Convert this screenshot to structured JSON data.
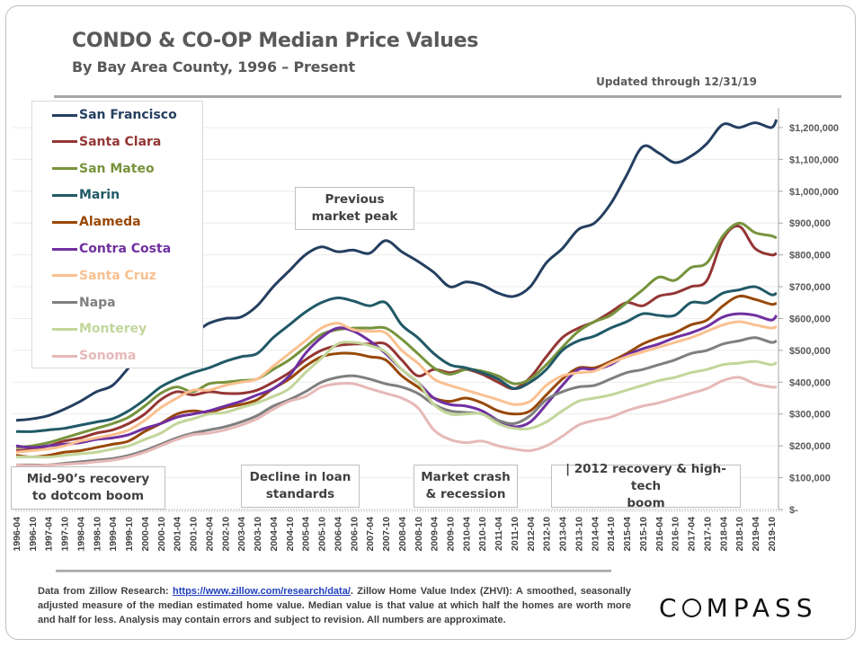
{
  "header": {
    "title": "CONDO & CO-OP Median Price Values",
    "subtitle": "By Bay Area County,  1996 – Present",
    "updated": "Updated through 12/31/19"
  },
  "annotations": {
    "previous_peak": [
      "Previous",
      "market peak"
    ],
    "mid90s": [
      "Mid-90’s recovery",
      "to dotcom boom"
    ],
    "loan": [
      "Decline in loan",
      "standards"
    ],
    "crash": [
      "Market crash",
      "& recession"
    ],
    "recovery": [
      "| 2012 recovery & high-tech",
      "boom"
    ]
  },
  "footer": {
    "prefix": "Data from Zillow Research: ",
    "link": "https://www.zillow.com/research/data/",
    "text": ". Zillow Home Value Index (ZHVI): A smoothed, seasonally adjusted measure of the median estimated home value. Median value is that value at which half the homes are worth more and half for less. Analysis may contain errors and subject to revision. All numbers are approximate."
  },
  "logo": {
    "text": "COMPASS"
  },
  "chart_data": {
    "type": "line",
    "title": "CONDO & CO-OP Median Price Values",
    "xlabel": "",
    "ylabel": "",
    "ylim": [
      0,
      1250000
    ],
    "grid": true,
    "legend_placement": "top-left",
    "y_ticks": [
      "$-",
      "$100,000",
      "$200,000",
      "$300,000",
      "$400,000",
      "$500,000",
      "$600,000",
      "$700,000",
      "$800,000",
      "$900,000",
      "$1,000,000",
      "$1,100,000",
      "$1,200,000"
    ],
    "y_tick_values": [
      0,
      100000,
      200000,
      300000,
      400000,
      500000,
      600000,
      700000,
      800000,
      900000,
      1000000,
      1100000,
      1200000
    ],
    "x_ticks": [
      "1996-04",
      "1996-10",
      "1997-04",
      "1997-10",
      "1998-04",
      "1998-10",
      "1999-04",
      "1999-10",
      "2000-04",
      "2000-10",
      "2001-04",
      "2001-10",
      "2002-04",
      "2002-10",
      "2003-04",
      "2003-10",
      "2004-04",
      "2004-10",
      "2005-04",
      "2005-10",
      "2006-04",
      "2006-10",
      "2007-04",
      "2007-10",
      "2008-04",
      "2008-10",
      "2009-04",
      "2009-10",
      "2010-04",
      "2010-10",
      "2011-04",
      "2011-10",
      "2012-04",
      "2012-10",
      "2013-04",
      "2013-10",
      "2014-04",
      "2014-10",
      "2015-04",
      "2015-10",
      "2016-04",
      "2016-10",
      "2017-04",
      "2017-10",
      "2018-04",
      "2018-10",
      "2019-04",
      "2019-10"
    ],
    "x": [
      "1996-04",
      "1996-10",
      "1997-04",
      "1997-10",
      "1998-04",
      "1998-10",
      "1999-04",
      "1999-10",
      "2000-04",
      "2000-10",
      "2001-04",
      "2001-10",
      "2002-04",
      "2002-10",
      "2003-04",
      "2003-10",
      "2004-04",
      "2004-10",
      "2005-04",
      "2005-10",
      "2006-04",
      "2006-10",
      "2007-04",
      "2007-10",
      "2008-04",
      "2008-10",
      "2009-04",
      "2009-10",
      "2010-04",
      "2010-10",
      "2011-04",
      "2011-10",
      "2012-04",
      "2012-10",
      "2013-04",
      "2013-10",
      "2014-04",
      "2014-10",
      "2015-04",
      "2015-10",
      "2016-04",
      "2016-10",
      "2017-04",
      "2017-10",
      "2018-04",
      "2018-10",
      "2019-04",
      "2019-10",
      "2019-12"
    ],
    "series": [
      {
        "name": "San Francisco",
        "color": "#243f60",
        "values": [
          280000,
          285000,
          295000,
          315000,
          340000,
          370000,
          390000,
          445000,
          500000,
          545000,
          560000,
          555000,
          585000,
          600000,
          605000,
          640000,
          700000,
          750000,
          800000,
          825000,
          810000,
          815000,
          805000,
          845000,
          810000,
          780000,
          745000,
          700000,
          715000,
          705000,
          680000,
          670000,
          700000,
          775000,
          820000,
          880000,
          900000,
          960000,
          1050000,
          1140000,
          1120000,
          1090000,
          1110000,
          1150000,
          1210000,
          1200000,
          1215000,
          1200000,
          1225000
        ]
      },
      {
        "name": "Santa Clara",
        "color": "#943634",
        "values": [
          185000,
          190000,
          200000,
          215000,
          225000,
          240000,
          250000,
          270000,
          300000,
          345000,
          370000,
          360000,
          370000,
          365000,
          365000,
          375000,
          400000,
          430000,
          470000,
          500000,
          515000,
          520000,
          520000,
          520000,
          470000,
          420000,
          440000,
          430000,
          440000,
          425000,
          400000,
          380000,
          415000,
          480000,
          540000,
          570000,
          590000,
          620000,
          650000,
          640000,
          670000,
          680000,
          700000,
          720000,
          850000,
          890000,
          820000,
          800000,
          805000
        ]
      },
      {
        "name": "San Mateo",
        "color": "#77933c",
        "values": [
          195000,
          200000,
          210000,
          225000,
          240000,
          255000,
          270000,
          290000,
          325000,
          365000,
          385000,
          370000,
          395000,
          400000,
          405000,
          410000,
          440000,
          470000,
          510000,
          550000,
          565000,
          570000,
          570000,
          570000,
          535000,
          490000,
          445000,
          425000,
          440000,
          435000,
          420000,
          395000,
          410000,
          455000,
          510000,
          560000,
          590000,
          610000,
          650000,
          690000,
          730000,
          720000,
          760000,
          775000,
          860000,
          900000,
          870000,
          860000,
          853000
        ]
      },
      {
        "name": "Marin",
        "color": "#215967",
        "values": [
          245000,
          245000,
          250000,
          255000,
          265000,
          275000,
          285000,
          310000,
          345000,
          385000,
          410000,
          430000,
          445000,
          465000,
          480000,
          490000,
          540000,
          580000,
          620000,
          650000,
          665000,
          655000,
          640000,
          650000,
          580000,
          540000,
          490000,
          455000,
          445000,
          430000,
          410000,
          380000,
          400000,
          440000,
          500000,
          530000,
          545000,
          570000,
          590000,
          615000,
          610000,
          610000,
          650000,
          650000,
          680000,
          690000,
          700000,
          675000,
          680000
        ]
      },
      {
        "name": "Alameda",
        "color": "#984807",
        "values": [
          170000,
          165000,
          170000,
          180000,
          185000,
          195000,
          205000,
          215000,
          245000,
          270000,
          300000,
          310000,
          305000,
          320000,
          330000,
          345000,
          380000,
          410000,
          450000,
          480000,
          490000,
          490000,
          480000,
          470000,
          420000,
          385000,
          350000,
          340000,
          350000,
          335000,
          310000,
          300000,
          310000,
          360000,
          410000,
          445000,
          445000,
          465000,
          490000,
          520000,
          540000,
          555000,
          580000,
          595000,
          640000,
          670000,
          660000,
          645000,
          648000
        ]
      },
      {
        "name": "Contra Costa",
        "color": "#7030a0",
        "values": [
          200000,
          195000,
          200000,
          205000,
          210000,
          220000,
          225000,
          235000,
          255000,
          270000,
          290000,
          300000,
          310000,
          325000,
          340000,
          360000,
          380000,
          420000,
          490000,
          540000,
          570000,
          560000,
          530000,
          490000,
          440000,
          400000,
          350000,
          330000,
          325000,
          310000,
          280000,
          260000,
          275000,
          330000,
          390000,
          440000,
          440000,
          455000,
          485000,
          505000,
          520000,
          540000,
          555000,
          575000,
          605000,
          615000,
          610000,
          595000,
          610000
        ]
      },
      {
        "name": "Santa Cruz",
        "color": "#fac090",
        "values": [
          180000,
          185000,
          190000,
          200000,
          215000,
          225000,
          235000,
          250000,
          280000,
          320000,
          350000,
          375000,
          375000,
          390000,
          400000,
          410000,
          450000,
          490000,
          530000,
          570000,
          585000,
          565000,
          560000,
          555000,
          500000,
          460000,
          410000,
          390000,
          375000,
          360000,
          345000,
          330000,
          340000,
          390000,
          420000,
          430000,
          435000,
          460000,
          480000,
          495000,
          510000,
          525000,
          540000,
          560000,
          580000,
          590000,
          580000,
          570000,
          575000
        ]
      },
      {
        "name": "Napa",
        "color": "#7f7f7f",
        "values": [
          140000,
          140000,
          140000,
          145000,
          150000,
          155000,
          160000,
          170000,
          185000,
          205000,
          225000,
          240000,
          250000,
          260000,
          275000,
          295000,
          325000,
          345000,
          370000,
          400000,
          415000,
          420000,
          410000,
          395000,
          385000,
          365000,
          330000,
          310000,
          305000,
          300000,
          280000,
          270000,
          295000,
          345000,
          370000,
          385000,
          390000,
          410000,
          430000,
          440000,
          455000,
          470000,
          490000,
          500000,
          520000,
          530000,
          540000,
          525000,
          530000
        ]
      },
      {
        "name": "Monterey",
        "color": "#c3d69b",
        "values": [
          165000,
          165000,
          165000,
          170000,
          175000,
          180000,
          190000,
          200000,
          220000,
          240000,
          270000,
          285000,
          300000,
          305000,
          320000,
          335000,
          355000,
          380000,
          430000,
          475000,
          520000,
          525000,
          515000,
          495000,
          440000,
          400000,
          330000,
          300000,
          300000,
          300000,
          270000,
          255000,
          255000,
          275000,
          310000,
          340000,
          350000,
          360000,
          375000,
          390000,
          405000,
          415000,
          430000,
          440000,
          455000,
          460000,
          465000,
          455000,
          462000
        ]
      },
      {
        "name": "Sonoma",
        "color": "#e6b9b8",
        "values": [
          140000,
          138000,
          140000,
          142000,
          145000,
          150000,
          155000,
          165000,
          180000,
          200000,
          220000,
          235000,
          240000,
          250000,
          265000,
          285000,
          315000,
          340000,
          355000,
          385000,
          395000,
          395000,
          380000,
          365000,
          350000,
          320000,
          250000,
          220000,
          210000,
          215000,
          200000,
          190000,
          185000,
          200000,
          230000,
          265000,
          280000,
          290000,
          310000,
          325000,
          335000,
          350000,
          365000,
          380000,
          405000,
          415000,
          395000,
          385000,
          385000
        ]
      }
    ]
  }
}
